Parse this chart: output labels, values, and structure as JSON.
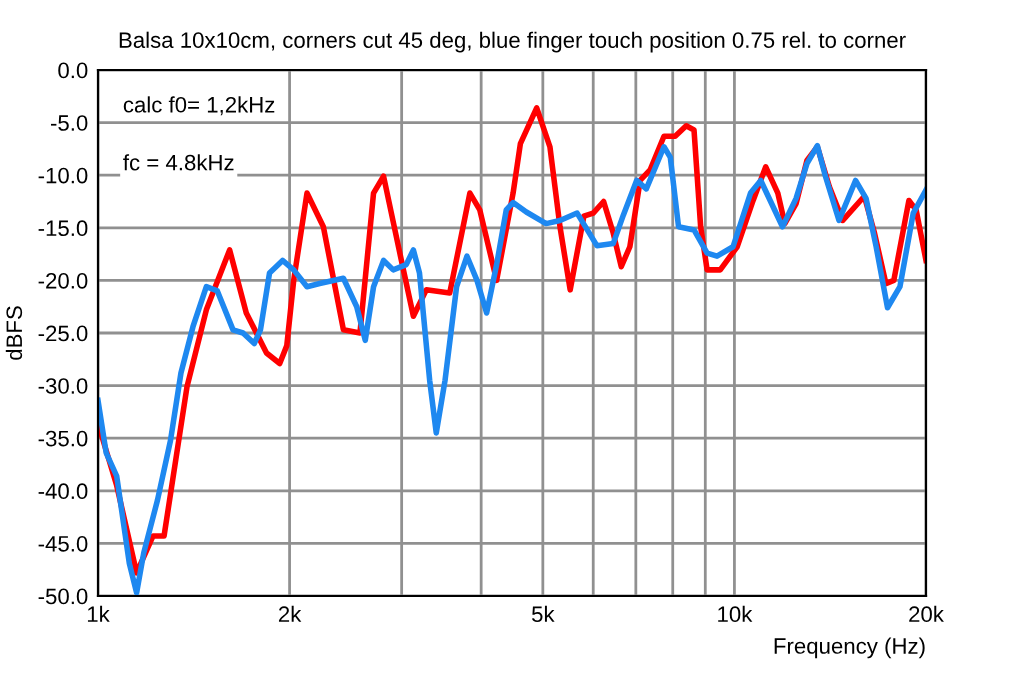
{
  "chart_data": {
    "type": "line",
    "title": "Balsa 10x10cm, corners cut 45 deg, blue finger touch position 0.75 rel. to corner",
    "xlabel": "Frequency (Hz)",
    "ylabel": "dBFS",
    "log": "x",
    "grid": true,
    "marker": "none",
    "line_style": "solid",
    "annotations": [
      "calc f0= 1,2kHz",
      "fc = 4.8kHz"
    ],
    "xlim": [
      1000,
      20000
    ],
    "ylim": [
      -50,
      0
    ],
    "xticks": [
      {
        "value": 1000,
        "label": "1k"
      },
      {
        "value": 2000,
        "label": "2k"
      },
      {
        "value": 3000,
        "label": null
      },
      {
        "value": 4000,
        "label": null
      },
      {
        "value": 5000,
        "label": "5k"
      },
      {
        "value": 6000,
        "label": null
      },
      {
        "value": 7000,
        "label": null
      },
      {
        "value": 8000,
        "label": null
      },
      {
        "value": 9000,
        "label": null
      },
      {
        "value": 10000,
        "label": "10k"
      },
      {
        "value": 20000,
        "label": "20k"
      }
    ],
    "yticks": [
      {
        "value": -50,
        "label": "-50.0"
      },
      {
        "value": -45,
        "label": "-45.0"
      },
      {
        "value": -40,
        "label": "-40.0"
      },
      {
        "value": -35,
        "label": "-35.0"
      },
      {
        "value": -30,
        "label": "-30.0"
      },
      {
        "value": -25,
        "label": "-25.0"
      },
      {
        "value": -20,
        "label": "-20.0"
      },
      {
        "value": -15,
        "label": "-15.0"
      },
      {
        "value": -10,
        "label": "-10.0"
      },
      {
        "value": -5,
        "label": "-5.0"
      },
      {
        "value": 0,
        "label": "0.0"
      }
    ],
    "series": [
      {
        "color": "#ff0000",
        "x": [
          1000,
          1070,
          1150,
          1220,
          1270,
          1330,
          1380,
          1480,
          1610,
          1710,
          1840,
          1930,
          1980,
          2030,
          2130,
          2260,
          2430,
          2580,
          2710,
          2810,
          2980,
          3130,
          3280,
          3570,
          3840,
          3980,
          4230,
          4490,
          4610,
          4890,
          5130,
          5320,
          5520,
          5800,
          6000,
          6230,
          6450,
          6640,
          6850,
          7110,
          7370,
          7750,
          8070,
          8400,
          8640,
          8850,
          9060,
          9500,
          10100,
          10700,
          11200,
          11700,
          12000,
          12500,
          13000,
          13500,
          14100,
          14800,
          16000,
          16600,
          17300,
          17800,
          18800,
          19300,
          20000
        ],
        "values": [
          -33.6,
          -39.5,
          -47.8,
          -44.3,
          -44.3,
          -36.4,
          -30.1,
          -22.8,
          -17.1,
          -23.1,
          -26.9,
          -27.9,
          -26.2,
          -20.0,
          -11.7,
          -14.9,
          -24.7,
          -25.0,
          -11.7,
          -10.1,
          -17.4,
          -23.4,
          -20.9,
          -21.2,
          -11.7,
          -13.3,
          -20.0,
          -11.7,
          -7.0,
          -3.6,
          -7.3,
          -14.9,
          -20.9,
          -13.9,
          -13.6,
          -12.5,
          -15.5,
          -18.7,
          -16.8,
          -10.5,
          -9.5,
          -6.3,
          -6.3,
          -5.3,
          -5.7,
          -14.9,
          -19.0,
          -19.0,
          -16.8,
          -12.4,
          -9.2,
          -11.7,
          -14.6,
          -12.7,
          -8.6,
          -7.3,
          -11.1,
          -14.3,
          -12.0,
          -15.5,
          -20.3,
          -20.0,
          -12.4,
          -13.3,
          -18.1
        ]
      },
      {
        "color": "#1e88f0",
        "x": [
          1000,
          1030,
          1070,
          1120,
          1150,
          1180,
          1240,
          1300,
          1350,
          1410,
          1480,
          1540,
          1630,
          1690,
          1760,
          1800,
          1860,
          1950,
          2030,
          2130,
          2230,
          2430,
          2550,
          2630,
          2710,
          2810,
          2910,
          3050,
          3130,
          3200,
          3320,
          3400,
          3510,
          3660,
          3800,
          3940,
          4080,
          4230,
          4380,
          4490,
          4710,
          5060,
          5320,
          5660,
          6080,
          6450,
          6690,
          7020,
          7270,
          7750,
          7930,
          8170,
          8640,
          9060,
          9390,
          9950,
          10600,
          11000,
          11900,
          12500,
          13000,
          13500,
          13900,
          14600,
          15500,
          16100,
          16700,
          17400,
          18200,
          19100,
          20000
        ],
        "values": [
          -31.4,
          -36.4,
          -38.6,
          -46.9,
          -49.7,
          -45.9,
          -40.9,
          -35.2,
          -28.8,
          -24.4,
          -20.6,
          -21.0,
          -24.7,
          -25.0,
          -26.0,
          -24.7,
          -19.3,
          -18.1,
          -19.0,
          -20.6,
          -20.3,
          -19.8,
          -22.5,
          -25.7,
          -20.6,
          -18.1,
          -19.0,
          -18.5,
          -17.1,
          -19.3,
          -29.5,
          -34.5,
          -29.5,
          -20.6,
          -17.7,
          -20.0,
          -23.1,
          -18.5,
          -13.3,
          -12.6,
          -13.5,
          -14.6,
          -14.3,
          -13.6,
          -16.7,
          -16.5,
          -13.8,
          -10.5,
          -11.3,
          -7.3,
          -8.3,
          -14.9,
          -15.2,
          -17.4,
          -17.7,
          -16.8,
          -11.7,
          -10.5,
          -14.9,
          -12.2,
          -8.9,
          -7.2,
          -10.1,
          -14.3,
          -10.5,
          -12.2,
          -16.8,
          -22.6,
          -20.6,
          -13.6,
          -11.4
        ]
      }
    ]
  }
}
